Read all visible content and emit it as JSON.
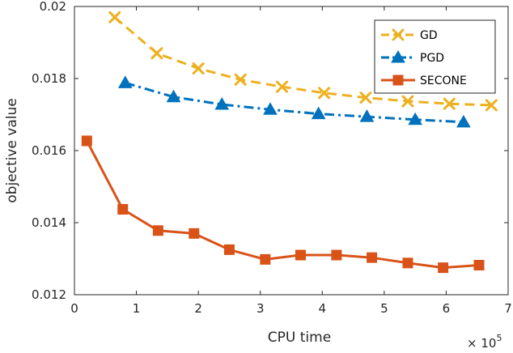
{
  "chart_data": {
    "type": "line",
    "xlabel": "CPU time",
    "ylabel": "objective value",
    "x_exponent_label": "× 10",
    "x_exponent": "5",
    "xlim": [
      0,
      7
    ],
    "ylim": [
      0.012,
      0.02
    ],
    "xticks": [
      0,
      1,
      2,
      3,
      4,
      5,
      6,
      7
    ],
    "xtick_labels": [
      "0",
      "1",
      "2",
      "3",
      "4",
      "5",
      "6",
      "7"
    ],
    "yticks": [
      0.012,
      0.014,
      0.016,
      0.018,
      0.02
    ],
    "ytick_labels": [
      "0.012",
      "0.014",
      "0.016",
      "0.018",
      "0.02"
    ],
    "grid": false,
    "legend_position": "top-right",
    "series": [
      {
        "name": "GD",
        "color": "#EDB120",
        "line_style": "dashed",
        "marker": "x",
        "x": [
          0.65,
          1.33,
          2.0,
          2.68,
          3.35,
          4.03,
          4.7,
          5.38,
          6.05,
          6.73
        ],
        "y": [
          0.0197,
          0.0187,
          0.01828,
          0.01797,
          0.01777,
          0.0176,
          0.01747,
          0.01737,
          0.0173,
          0.01726
        ]
      },
      {
        "name": "PGD",
        "color": "#0072BD",
        "line_style": "dash-dot",
        "marker": "triangle",
        "x": [
          0.82,
          1.6,
          2.38,
          3.16,
          3.94,
          4.72,
          5.5,
          6.28
        ],
        "y": [
          0.01788,
          0.01749,
          0.01728,
          0.01714,
          0.01702,
          0.01694,
          0.01686,
          0.01679
        ]
      },
      {
        "name": "SECONE",
        "color": "#D95319",
        "line_style": "solid",
        "marker": "square",
        "x": [
          0.2,
          0.78,
          1.35,
          1.93,
          2.5,
          3.08,
          3.65,
          4.23,
          4.8,
          5.38,
          5.95,
          6.53
        ],
        "y": [
          0.01627,
          0.01437,
          0.01378,
          0.0137,
          0.01325,
          0.01298,
          0.0131,
          0.0131,
          0.01303,
          0.01288,
          0.01275,
          0.01282
        ]
      }
    ]
  }
}
